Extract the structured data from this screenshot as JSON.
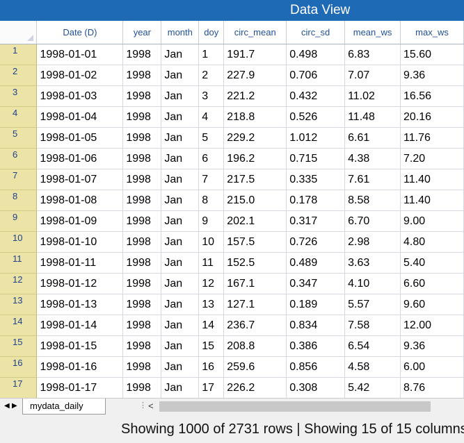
{
  "window": {
    "title": "Data View"
  },
  "table": {
    "columns": [
      "Date (D)",
      "year",
      "month",
      "doy",
      "circ_mean",
      "circ_sd",
      "mean_ws",
      "max_ws"
    ],
    "rows": [
      [
        "1",
        "1998-01-01",
        "1998",
        "Jan",
        "1",
        "191.7",
        "0.498",
        "6.83",
        "15.60"
      ],
      [
        "2",
        "1998-01-02",
        "1998",
        "Jan",
        "2",
        "227.9",
        "0.706",
        "7.07",
        "9.36"
      ],
      [
        "3",
        "1998-01-03",
        "1998",
        "Jan",
        "3",
        "221.2",
        "0.432",
        "11.02",
        "16.56"
      ],
      [
        "4",
        "1998-01-04",
        "1998",
        "Jan",
        "4",
        "218.8",
        "0.526",
        "11.48",
        "20.16"
      ],
      [
        "5",
        "1998-01-05",
        "1998",
        "Jan",
        "5",
        "229.2",
        "1.012",
        "6.61",
        "11.76"
      ],
      [
        "6",
        "1998-01-06",
        "1998",
        "Jan",
        "6",
        "196.2",
        "0.715",
        "4.38",
        "7.20"
      ],
      [
        "7",
        "1998-01-07",
        "1998",
        "Jan",
        "7",
        "217.5",
        "0.335",
        "7.61",
        "11.40"
      ],
      [
        "8",
        "1998-01-08",
        "1998",
        "Jan",
        "8",
        "215.0",
        "0.178",
        "8.58",
        "11.40"
      ],
      [
        "9",
        "1998-01-09",
        "1998",
        "Jan",
        "9",
        "202.1",
        "0.317",
        "6.70",
        "9.00"
      ],
      [
        "10",
        "1998-01-10",
        "1998",
        "Jan",
        "10",
        "157.5",
        "0.726",
        "2.98",
        "4.80"
      ],
      [
        "11",
        "1998-01-11",
        "1998",
        "Jan",
        "11",
        "152.5",
        "0.489",
        "3.63",
        "5.40"
      ],
      [
        "12",
        "1998-01-12",
        "1998",
        "Jan",
        "12",
        "167.1",
        "0.347",
        "4.10",
        "6.60"
      ],
      [
        "13",
        "1998-01-13",
        "1998",
        "Jan",
        "13",
        "127.1",
        "0.189",
        "5.57",
        "9.60"
      ],
      [
        "14",
        "1998-01-14",
        "1998",
        "Jan",
        "14",
        "236.7",
        "0.834",
        "7.58",
        "12.00"
      ],
      [
        "15",
        "1998-01-15",
        "1998",
        "Jan",
        "15",
        "208.8",
        "0.386",
        "6.54",
        "9.36"
      ],
      [
        "16",
        "1998-01-16",
        "1998",
        "Jan",
        "16",
        "259.6",
        "0.856",
        "4.58",
        "6.00"
      ],
      [
        "17",
        "1998-01-17",
        "1998",
        "Jan",
        "17",
        "226.2",
        "0.308",
        "5.42",
        "8.76"
      ]
    ]
  },
  "tabs": {
    "nav_prev_glyph": "◀",
    "nav_next_glyph": "▶",
    "sheet_name": "mydata_daily",
    "split_glyph": "⋮",
    "scroll_left_glyph": "<"
  },
  "status": {
    "text": "Showing 1000 of 2731 rows | Showing 15 of 15 columns"
  },
  "colors": {
    "title_bar": "#1f6ab4",
    "row_header": "#ebe4a6",
    "column_header_text": "#1f4f99"
  },
  "icons": {
    "corner": "select-all-triangle-icon",
    "nav_prev": "triangle-left-icon",
    "nav_next": "triangle-right-icon"
  }
}
